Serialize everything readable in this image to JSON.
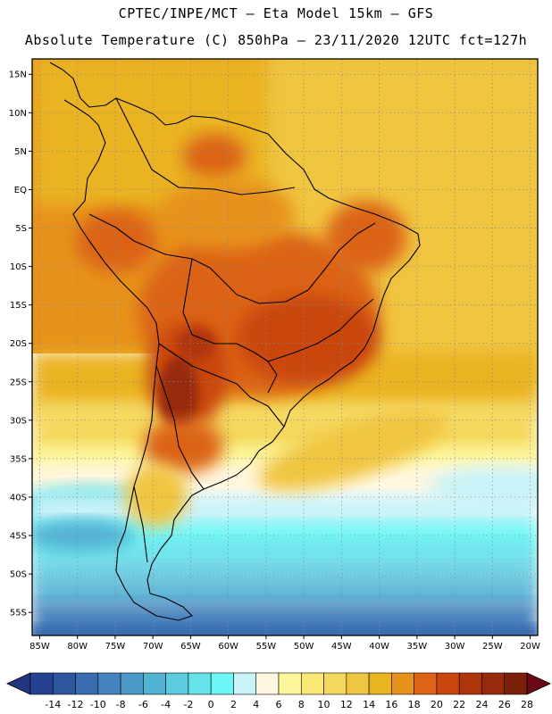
{
  "header": {
    "line1": "CPTEC/INPE/MCT –  Eta Model 15km – GFS",
    "line2": "Absolute Temperature (C) 850hPa – 23/11/2020 12UTC fct=127h"
  },
  "map": {
    "lat_labels": [
      "15N",
      "10N",
      "5N",
      "EQ",
      "5S",
      "10S",
      "15S",
      "20S",
      "25S",
      "30S",
      "35S",
      "40S",
      "45S",
      "50S",
      "55S"
    ],
    "lat_values": [
      15,
      10,
      5,
      0,
      -5,
      -10,
      -15,
      -20,
      -25,
      -30,
      -35,
      -40,
      -45,
      -50,
      -55
    ],
    "lon_labels": [
      "85W",
      "80W",
      "75W",
      "70W",
      "65W",
      "60W",
      "55W",
      "50W",
      "45W",
      "40W",
      "35W",
      "30W",
      "25W",
      "20W"
    ],
    "lon_values": [
      -85,
      -80,
      -75,
      -70,
      -65,
      -60,
      -55,
      -50,
      -45,
      -40,
      -35,
      -30,
      -25,
      -20
    ],
    "lat_range": [
      -58,
      17
    ],
    "lon_range": [
      -86,
      -19
    ]
  },
  "colorbar": {
    "labels": [
      "-14",
      "-12",
      "-10",
      "-8",
      "-6",
      "-4",
      "-2",
      "0",
      "2",
      "4",
      "6",
      "8",
      "10",
      "12",
      "14",
      "16",
      "18",
      "20",
      "22",
      "24",
      "26",
      "28"
    ],
    "colors": [
      "#24428f",
      "#2d58a0",
      "#3a6cb0",
      "#4683be",
      "#4c98c6",
      "#52b2d4",
      "#5ccbe0",
      "#67e1ea",
      "#6ef5f5",
      "#c9f3f8",
      "#fff6df",
      "#fdf79a",
      "#f9e878",
      "#f5d95e",
      "#f0c541",
      "#eab320",
      "#e7921b",
      "#dc6414",
      "#c9470f",
      "#b0350c",
      "#962a0b",
      "#7d200a"
    ]
  }
}
